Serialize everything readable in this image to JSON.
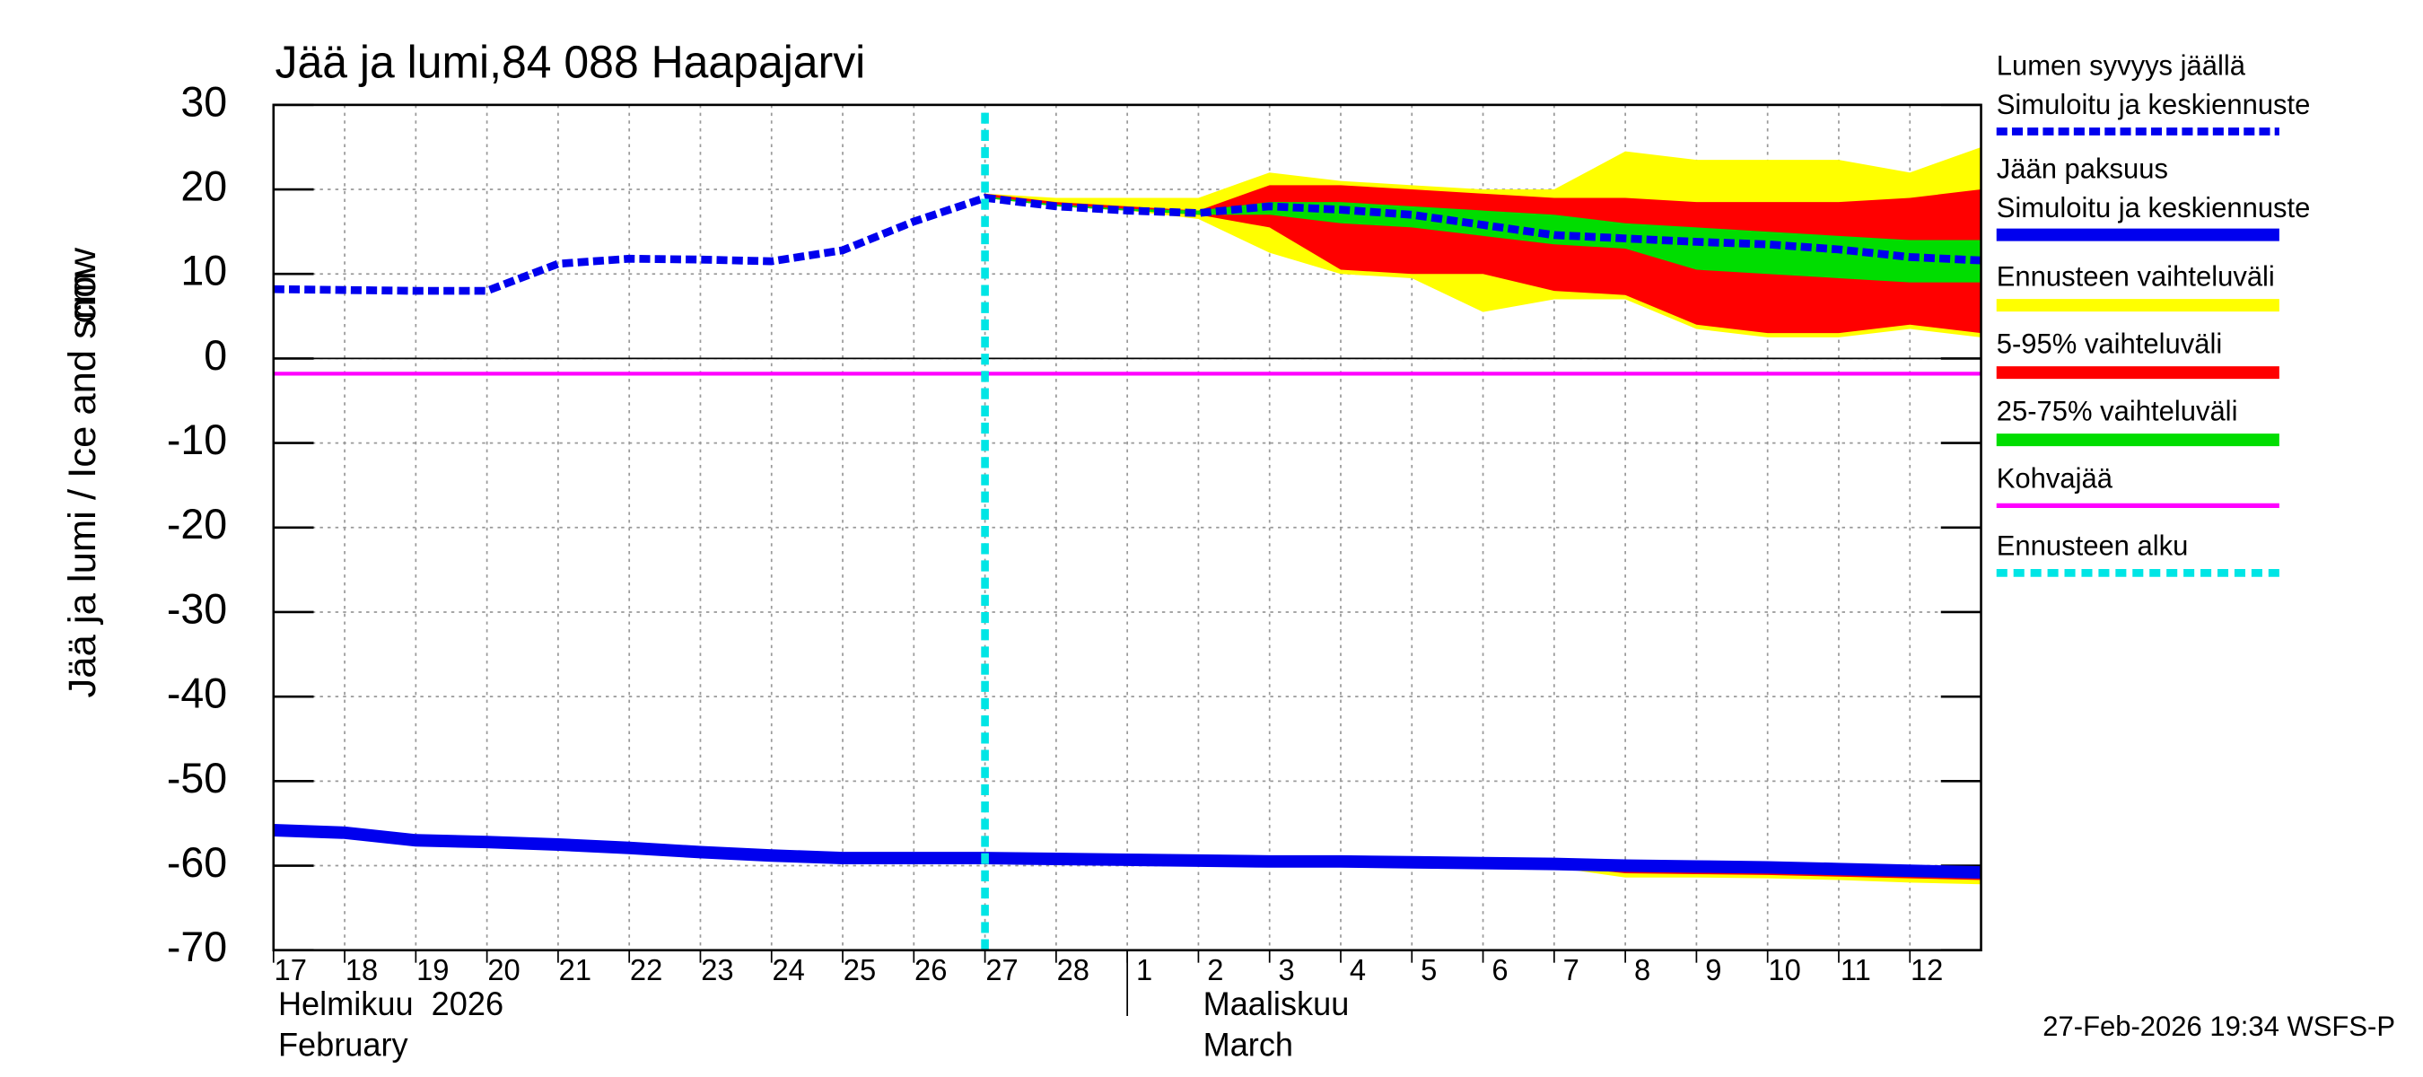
{
  "chart_data": {
    "type": "band-line",
    "title": "Jää ja lumi,84 088 Haapajarvi",
    "y_label": "Jää ja lumi / Ice and snow",
    "y_unit": "cm",
    "timestamp": "27-Feb-2026 19:34 WSFS-P",
    "months": [
      {
        "x": "2026-02-17",
        "fi": "Helmikuu  2026",
        "en": "February"
      },
      {
        "x": "2026-03-02",
        "fi": "Maaliskuu",
        "en": "March"
      }
    ],
    "month_separator": "2026-03-01",
    "x": [
      "2026-02-17",
      "2026-02-18",
      "2026-02-19",
      "2026-02-20",
      "2026-02-21",
      "2026-02-22",
      "2026-02-23",
      "2026-02-24",
      "2026-02-25",
      "2026-02-26",
      "2026-02-27",
      "2026-02-28",
      "2026-03-01",
      "2026-03-02",
      "2026-03-03",
      "2026-03-04",
      "2026-03-05",
      "2026-03-06",
      "2026-03-07",
      "2026-03-08",
      "2026-03-09",
      "2026-03-10",
      "2026-03-11",
      "2026-03-12",
      "2026-03-13"
    ],
    "xlim": [
      "2026-02-17",
      "2026-03-13"
    ],
    "xticks": [
      {
        "value": "2026-02-17",
        "label": "17"
      },
      {
        "value": "2026-02-18",
        "label": "18"
      },
      {
        "value": "2026-02-19",
        "label": "19"
      },
      {
        "value": "2026-02-20",
        "label": "20"
      },
      {
        "value": "2026-02-21",
        "label": "21"
      },
      {
        "value": "2026-02-22",
        "label": "22"
      },
      {
        "value": "2026-02-23",
        "label": "23"
      },
      {
        "value": "2026-02-24",
        "label": "24"
      },
      {
        "value": "2026-02-25",
        "label": "25"
      },
      {
        "value": "2026-02-26",
        "label": "26"
      },
      {
        "value": "2026-02-27",
        "label": "27"
      },
      {
        "value": "2026-02-28",
        "label": "28"
      },
      {
        "value": "2026-03-01",
        "label": "1"
      },
      {
        "value": "2026-03-02",
        "label": "2"
      },
      {
        "value": "2026-03-03",
        "label": "3"
      },
      {
        "value": "2026-03-04",
        "label": "4"
      },
      {
        "value": "2026-03-05",
        "label": "5"
      },
      {
        "value": "2026-03-06",
        "label": "6"
      },
      {
        "value": "2026-03-07",
        "label": "7"
      },
      {
        "value": "2026-03-08",
        "label": "8"
      },
      {
        "value": "2026-03-09",
        "label": "9"
      },
      {
        "value": "2026-03-10",
        "label": "10"
      },
      {
        "value": "2026-03-11",
        "label": "11"
      },
      {
        "value": "2026-03-12",
        "label": "12"
      }
    ],
    "ylim": [
      -70,
      30
    ],
    "yticks": [
      30,
      20,
      10,
      0,
      -10,
      -20,
      -30,
      -40,
      -50,
      -60,
      -70
    ],
    "grid": true,
    "bands": [
      {
        "name": "Ennusteen vaihteluväli",
        "color": "#ffff00",
        "snow_upper": [
          null,
          null,
          null,
          null,
          null,
          null,
          null,
          null,
          null,
          null,
          19.5,
          19,
          19,
          19,
          22,
          21,
          20.5,
          20,
          20,
          24.5,
          23.5,
          23.5,
          23.5,
          22,
          25
        ],
        "snow_lower": [
          null,
          null,
          null,
          null,
          null,
          null,
          null,
          null,
          null,
          null,
          19,
          18,
          17.5,
          16.5,
          12.5,
          10,
          9.5,
          5.5,
          7,
          7,
          3.5,
          2.5,
          2.5,
          3.5,
          2.5
        ],
        "ice_upper": [
          null,
          null,
          null,
          null,
          null,
          null,
          null,
          null,
          null,
          null,
          -59.1,
          -59.2,
          -59.3,
          -59.4,
          -59.5,
          -59.5,
          -59.6,
          -59.7,
          -59.8,
          -59.8,
          -59.8,
          -59.9,
          -60,
          -60.1,
          -60.2
        ],
        "ice_lower": [
          null,
          null,
          null,
          null,
          null,
          null,
          null,
          null,
          null,
          null,
          -59.1,
          -59.2,
          -59.3,
          -59.4,
          -59.5,
          -59.5,
          -59.6,
          -59.7,
          -60.2,
          -61.4,
          -61.4,
          -61.5,
          -61.7,
          -62,
          -62.2
        ]
      },
      {
        "name": "5-95% vaihteluväli",
        "color": "#ff0000",
        "snow_upper": [
          null,
          null,
          null,
          null,
          null,
          null,
          null,
          null,
          null,
          null,
          19.5,
          18.5,
          18,
          17.5,
          20.5,
          20.5,
          20,
          19.5,
          19,
          19,
          18.5,
          18.5,
          18.5,
          19,
          20
        ],
        "snow_lower": [
          null,
          null,
          null,
          null,
          null,
          null,
          null,
          null,
          null,
          null,
          19,
          18,
          17.5,
          17,
          15.5,
          10.5,
          10,
          10,
          8,
          7.5,
          4,
          3,
          3,
          4,
          3
        ],
        "ice_upper": [
          null,
          null,
          null,
          null,
          null,
          null,
          null,
          null,
          null,
          null,
          -59.1,
          -59.2,
          -59.3,
          -59.4,
          -59.5,
          -59.5,
          -59.6,
          -59.7,
          -59.8,
          -59.8,
          -59.8,
          -59.9,
          -60,
          -60.1,
          -60.2
        ],
        "ice_lower": [
          null,
          null,
          null,
          null,
          null,
          null,
          null,
          null,
          null,
          null,
          -59.1,
          -59.2,
          -59.3,
          -59.4,
          -59.5,
          -59.5,
          -59.6,
          -59.7,
          -60,
          -60.9,
          -61,
          -61.1,
          -61.3,
          -61.5,
          -61.7
        ]
      },
      {
        "name": "25-75% vaihteluväli",
        "color": "#00dd00",
        "snow_upper": [
          null,
          null,
          null,
          null,
          null,
          null,
          null,
          null,
          null,
          null,
          19.2,
          18.2,
          17.7,
          17.5,
          18.5,
          18.5,
          18,
          17.5,
          17,
          16,
          15.5,
          15,
          14.5,
          14,
          14
        ],
        "snow_lower": [
          null,
          null,
          null,
          null,
          null,
          null,
          null,
          null,
          null,
          null,
          19,
          18,
          17.5,
          17,
          17,
          16,
          15.5,
          14.5,
          13.5,
          13,
          10.5,
          10,
          9.5,
          9,
          9
        ]
      }
    ],
    "series": [
      {
        "name": "Lumen syvyys jäällä",
        "description": "Simuloitu ja keskiennuste",
        "color": "#0000ee",
        "style": "dashed",
        "values": [
          8.2,
          8.1,
          8,
          8,
          11.2,
          11.8,
          11.7,
          11.5,
          12.8,
          16.2,
          19,
          18,
          17.5,
          17.2,
          18,
          17.6,
          17,
          15.8,
          14.6,
          14.2,
          13.8,
          13.5,
          12.9,
          12,
          11.6
        ]
      },
      {
        "name": "Jään paksuus",
        "description": "Simuloitu ja keskiennuste",
        "color": "#0000ee",
        "style": "solid",
        "values": [
          -55.8,
          -56.1,
          -57,
          -57.2,
          -57.5,
          -57.9,
          -58.4,
          -58.8,
          -59.1,
          -59.1,
          -59.1,
          -59.2,
          -59.3,
          -59.4,
          -59.5,
          -59.5,
          -59.6,
          -59.7,
          -59.8,
          -60,
          -60.1,
          -60.2,
          -60.4,
          -60.6,
          -60.8
        ]
      }
    ],
    "kohva": {
      "name": "Kohvajää",
      "color": "#ff00ff",
      "value": -1.8
    },
    "forecast_start": {
      "name": "Ennusteen alku",
      "color": "#00e5e5",
      "x": "2026-02-27"
    }
  }
}
